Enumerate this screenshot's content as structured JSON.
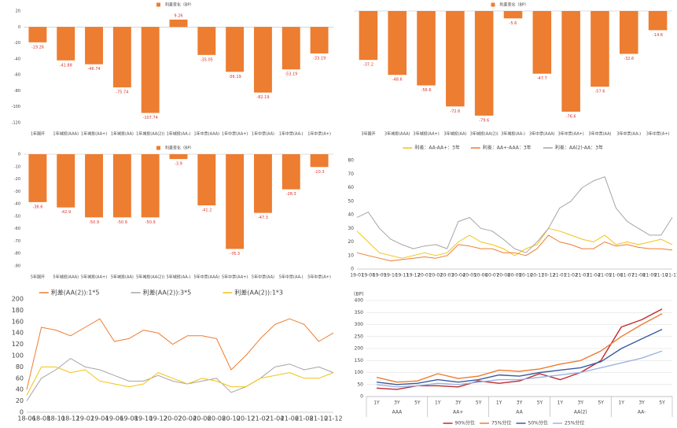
{
  "chart_data": [
    {
      "type": "bar",
      "categories": [
        "1年国开",
        "1年城投(AAA)",
        "1年城投(AA+)",
        "1年城投(AA)",
        "1年城投(AA(2))",
        "1年城投(AA-)",
        "1年中票(AAA)",
        "1年中票(AA+)",
        "1年中票(AA)",
        "1年中票(AA-)",
        "1年中票(A+)"
      ],
      "series": [
        {
          "name": "利差变化（BP）",
          "color": "#ed7d31",
          "values": [
            -19.26,
            -41.88,
            -46.74,
            -75.74,
            -107.74,
            9.26,
            -35.05,
            -56.19,
            -82.19,
            -53.19,
            -33.19
          ]
        }
      ],
      "ylim": [
        -120,
        20
      ],
      "yticks": [
        -120,
        -100,
        -80,
        -60,
        -40,
        -20,
        0,
        20
      ],
      "legend": "top"
    },
    {
      "type": "bar",
      "categories": [
        "3年国开",
        "3年城投(AAA)",
        "3年城投(AA+)",
        "3年城投(AA)",
        "3年城投(AA(2))",
        "3年城投(AA-)",
        "3年中票(AAA)",
        "3年中票(AA+)",
        "3年中票(AA)",
        "3年中票(AA-)",
        "3年中票(A+)"
      ],
      "series": [
        {
          "name": "利差变化（BP）",
          "color": "#ed7d31",
          "values": [
            -37.2,
            -48.6,
            -56.6,
            -72.6,
            -79.6,
            -5.6,
            -47.7,
            -76.6,
            -57.6,
            -32.6,
            -14.6
          ]
        }
      ],
      "ylim": [
        -85,
        0
      ],
      "legend": "top"
    },
    {
      "type": "bar",
      "categories": [
        "5年国开",
        "5年城投(AAA)",
        "5年城投(AA+)",
        "5年城投(AA)",
        "5年城投(AA(2))",
        "5年城投(AA-)",
        "5年中票(AAA)",
        "5年中票(AA+)",
        "5年中票(AA)",
        "5年中票(AA-)",
        "5年中票(A+)"
      ],
      "series": [
        {
          "name": "利差变化（BP）",
          "color": "#ed7d31",
          "values": [
            -38.6,
            -42.9,
            -50.9,
            -50.9,
            -50.9,
            -3.9,
            -41.2,
            -76.3,
            -47.3,
            -28.3,
            -10.3
          ]
        }
      ],
      "ylim": [
        -90,
        0
      ],
      "yticks": [
        -90,
        -80,
        -70,
        -60,
        -50,
        -40,
        -30,
        -20,
        -10,
        0
      ],
      "legend": "top"
    },
    {
      "type": "line",
      "categories": [
        "19-07",
        "19-08",
        "19-09",
        "19-10",
        "19-11",
        "19-12",
        "20-01",
        "20-02",
        "20-03",
        "20-04",
        "20-05",
        "20-06",
        "20-07",
        "20-08",
        "20-09",
        "20-10",
        "20-11",
        "20-12",
        "21-01",
        "21-02",
        "21-03",
        "21-04",
        "21-05",
        "21-06",
        "21-07",
        "21-08",
        "21-09",
        "21-10",
        "21-11"
      ],
      "series": [
        {
          "name": "利差：AA-AA+：3年",
          "color": "#f2c314",
          "values": [
            28,
            20,
            12,
            10,
            8,
            10,
            12,
            10,
            12,
            20,
            25,
            20,
            18,
            15,
            10,
            15,
            18,
            30,
            28,
            25,
            22,
            20,
            25,
            18,
            20,
            18,
            20,
            22,
            18
          ]
        },
        {
          "name": "利差：AA+-AAA：3年",
          "color": "#ed7d31",
          "values": [
            12,
            10,
            8,
            6,
            7,
            8,
            9,
            8,
            10,
            18,
            17,
            15,
            15,
            12,
            12,
            10,
            15,
            25,
            20,
            18,
            15,
            15,
            20,
            17,
            18,
            16,
            15,
            15,
            14
          ]
        },
        {
          "name": "利差：AA(2)-AA：3年",
          "color": "#a5a5a5",
          "values": [
            38,
            42,
            30,
            22,
            18,
            15,
            17,
            18,
            15,
            35,
            38,
            30,
            28,
            22,
            15,
            12,
            20,
            30,
            45,
            50,
            60,
            65,
            68,
            45,
            35,
            30,
            25,
            25,
            38
          ]
        }
      ],
      "ylim": [
        0,
        80
      ],
      "yticks": [
        0,
        10,
        20,
        30,
        40,
        50,
        60,
        70,
        80
      ],
      "legend": "top"
    },
    {
      "type": "line",
      "categories": [
        "18-06",
        "18-08",
        "18-10",
        "18-12",
        "19-02",
        "19-04",
        "19-06",
        "19-08",
        "19-10",
        "19-12",
        "20-02",
        "20-04",
        "20-06",
        "20-08",
        "20-10",
        "20-12",
        "21-02",
        "21-04",
        "21-06",
        "21-08",
        "21-10",
        "21-12"
      ],
      "series": [
        {
          "name": "利差(AA(2)):1*5",
          "color": "#ed7d31",
          "values": [
            40,
            150,
            145,
            135,
            150,
            165,
            125,
            130,
            145,
            140,
            120,
            135,
            135,
            130,
            75,
            100,
            130,
            155,
            165,
            155,
            125,
            140
          ]
        },
        {
          "name": "利差(AA(2)):3*5",
          "color": "#a5a5a5",
          "values": [
            20,
            60,
            75,
            95,
            80,
            75,
            65,
            55,
            55,
            65,
            55,
            50,
            55,
            60,
            35,
            45,
            60,
            80,
            85,
            75,
            80,
            70
          ]
        },
        {
          "name": "利差(AA(2)):1*3",
          "color": "#f2c314",
          "values": [
            30,
            80,
            80,
            70,
            75,
            55,
            50,
            45,
            50,
            70,
            60,
            50,
            60,
            55,
            45,
            45,
            60,
            65,
            70,
            60,
            60,
            70
          ]
        }
      ],
      "ylim": [
        0,
        200
      ],
      "yticks": [
        0,
        20,
        40,
        60,
        80,
        100,
        120,
        140,
        160,
        180,
        200
      ],
      "legend": "top"
    },
    {
      "type": "line",
      "y_label": "(BP)",
      "categories": [
        "1Y",
        "3Y",
        "5Y",
        "1Y",
        "3Y",
        "5Y",
        "1Y",
        "3Y",
        "5Y",
        "1Y",
        "3Y",
        "5Y",
        "1Y",
        "3Y",
        "5Y"
      ],
      "groups": [
        "AAA",
        "AA+",
        "AA",
        "AA(2)",
        "AA-"
      ],
      "series": [
        {
          "name": "90%分位",
          "color": "#c0282d",
          "values": [
            35,
            30,
            45,
            45,
            40,
            65,
            55,
            65,
            95,
            70,
            100,
            150,
            290,
            320,
            365
          ]
        },
        {
          "name": "75%分位",
          "color": "#ed7d31",
          "values": [
            80,
            60,
            65,
            95,
            75,
            85,
            110,
            105,
            115,
            135,
            150,
            190,
            250,
            300,
            345
          ]
        },
        {
          "name": "50%分位",
          "color": "#3a5ba0",
          "values": [
            60,
            50,
            55,
            70,
            60,
            70,
            90,
            85,
            100,
            110,
            120,
            145,
            200,
            240,
            280
          ]
        },
        {
          "name": "25%分位",
          "color": "#9db3e0",
          "values": [
            50,
            40,
            45,
            55,
            50,
            60,
            70,
            70,
            80,
            90,
            100,
            120,
            140,
            160,
            190
          ]
        }
      ],
      "ylim": [
        0,
        400
      ],
      "yticks": [
        0,
        50,
        100,
        150,
        200,
        250,
        300,
        350,
        400
      ],
      "grid": true,
      "legend": "bottom"
    }
  ]
}
